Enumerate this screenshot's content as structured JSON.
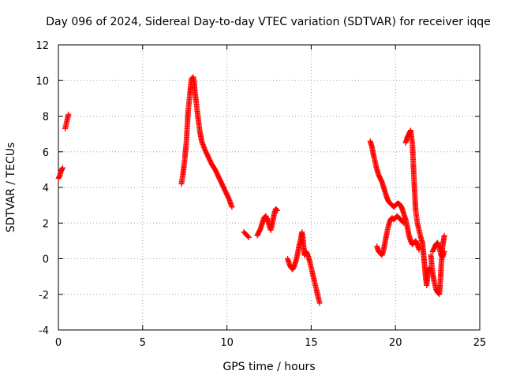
{
  "chart_data": {
    "type": "scatter",
    "title": "Day 096 of 2024, Sidereal Day-to-day VTEC variation (SDTVAR) for receiver iqqe",
    "xlabel": "GPS time / hours",
    "ylabel": "SDTVAR / TECUs",
    "xlim": [
      0,
      25
    ],
    "ylim": [
      -4,
      12
    ],
    "xticks": [
      0,
      5,
      10,
      15,
      20,
      25
    ],
    "yticks": [
      -4,
      -2,
      0,
      2,
      4,
      6,
      8,
      10,
      12
    ],
    "grid": true,
    "marker": "plus",
    "color": "#ff0000",
    "series": [
      {
        "name": "SDTVAR",
        "segments": [
          [
            [
              0.0,
              4.5
            ],
            [
              0.1,
              4.7
            ],
            [
              0.15,
              4.9
            ],
            [
              0.2,
              5.0
            ],
            [
              0.25,
              5.1
            ]
          ],
          [
            [
              0.4,
              7.3
            ],
            [
              0.45,
              7.5
            ],
            [
              0.5,
              7.7
            ],
            [
              0.55,
              7.9
            ],
            [
              0.6,
              8.1
            ]
          ],
          [
            [
              7.3,
              4.2
            ],
            [
              7.4,
              4.8
            ],
            [
              7.5,
              5.6
            ],
            [
              7.6,
              6.6
            ],
            [
              7.65,
              7.5
            ],
            [
              7.7,
              8.3
            ],
            [
              7.8,
              9.2
            ],
            [
              7.85,
              9.7
            ],
            [
              7.9,
              10.1
            ],
            [
              8.0,
              10.2
            ],
            [
              8.05,
              9.9
            ],
            [
              8.1,
              9.4
            ],
            [
              8.2,
              8.6
            ],
            [
              8.3,
              7.8
            ],
            [
              8.4,
              7.1
            ],
            [
              8.5,
              6.6
            ],
            [
              8.7,
              6.1
            ],
            [
              8.9,
              5.7
            ],
            [
              9.1,
              5.3
            ],
            [
              9.3,
              5.0
            ],
            [
              9.5,
              4.6
            ],
            [
              9.7,
              4.2
            ],
            [
              9.9,
              3.8
            ],
            [
              10.1,
              3.4
            ],
            [
              10.3,
              2.9
            ]
          ],
          [
            [
              11.0,
              1.5
            ],
            [
              11.1,
              1.4
            ],
            [
              11.2,
              1.3
            ],
            [
              11.3,
              1.2
            ]
          ],
          [
            [
              11.8,
              1.3
            ],
            [
              11.9,
              1.5
            ],
            [
              12.0,
              1.7
            ],
            [
              12.1,
              2.0
            ],
            [
              12.2,
              2.3
            ],
            [
              12.3,
              2.4
            ],
            [
              12.4,
              2.2
            ],
            [
              12.5,
              1.9
            ],
            [
              12.6,
              1.6
            ],
            [
              12.7,
              2.0
            ],
            [
              12.8,
              2.5
            ],
            [
              12.9,
              2.8
            ],
            [
              13.0,
              2.7
            ]
          ],
          [
            [
              13.6,
              0.0
            ],
            [
              13.7,
              -0.3
            ],
            [
              13.8,
              -0.5
            ],
            [
              13.9,
              -0.6
            ],
            [
              14.0,
              -0.4
            ],
            [
              14.1,
              -0.1
            ],
            [
              14.2,
              0.3
            ],
            [
              14.3,
              0.8
            ],
            [
              14.4,
              1.2
            ],
            [
              14.45,
              1.5
            ],
            [
              14.5,
              1.2
            ],
            [
              14.55,
              0.7
            ],
            [
              14.6,
              0.2
            ],
            [
              14.7,
              0.4
            ],
            [
              14.8,
              0.2
            ],
            [
              14.9,
              -0.1
            ],
            [
              15.0,
              -0.5
            ],
            [
              15.1,
              -0.9
            ],
            [
              15.2,
              -1.3
            ],
            [
              15.3,
              -1.7
            ],
            [
              15.4,
              -2.1
            ],
            [
              15.5,
              -2.5
            ]
          ],
          [
            [
              18.5,
              6.6
            ],
            [
              18.6,
              6.3
            ],
            [
              18.7,
              5.8
            ],
            [
              18.8,
              5.4
            ],
            [
              18.9,
              5.0
            ],
            [
              19.0,
              4.7
            ],
            [
              19.1,
              4.5
            ],
            [
              19.2,
              4.3
            ],
            [
              19.3,
              4.0
            ],
            [
              19.4,
              3.7
            ],
            [
              19.5,
              3.4
            ],
            [
              19.6,
              3.2
            ],
            [
              19.7,
              3.1
            ],
            [
              19.8,
              3.0
            ],
            [
              19.9,
              2.9
            ],
            [
              20.0,
              3.0
            ],
            [
              20.1,
              3.1
            ],
            [
              20.2,
              3.1
            ],
            [
              20.3,
              3.0
            ],
            [
              20.4,
              2.8
            ],
            [
              20.5,
              2.5
            ],
            [
              20.6,
              2.2
            ],
            [
              20.7,
              1.8
            ],
            [
              20.8,
              1.3
            ],
            [
              20.9,
              1.0
            ],
            [
              21.0,
              0.8
            ],
            [
              21.1,
              0.9
            ],
            [
              21.2,
              1.0
            ],
            [
              21.3,
              0.8
            ],
            [
              21.4,
              0.5
            ]
          ],
          [
            [
              18.9,
              0.7
            ],
            [
              19.0,
              0.4
            ],
            [
              19.1,
              0.3
            ],
            [
              19.2,
              0.2
            ],
            [
              19.3,
              0.5
            ],
            [
              19.4,
              1.0
            ],
            [
              19.5,
              1.5
            ],
            [
              19.6,
              1.9
            ],
            [
              19.7,
              2.2
            ],
            [
              19.8,
              2.3
            ],
            [
              19.9,
              2.2
            ],
            [
              20.0,
              2.3
            ],
            [
              20.1,
              2.4
            ],
            [
              20.2,
              2.3
            ],
            [
              20.3,
              2.2
            ],
            [
              20.4,
              2.1
            ],
            [
              20.5,
              2.0
            ]
          ],
          [
            [
              20.6,
              6.5
            ],
            [
              20.7,
              6.8
            ],
            [
              20.8,
              7.0
            ],
            [
              20.9,
              7.2
            ],
            [
              21.0,
              6.5
            ],
            [
              21.05,
              5.5
            ],
            [
              21.1,
              4.5
            ],
            [
              21.15,
              3.5
            ],
            [
              21.2,
              2.7
            ],
            [
              21.3,
              2.0
            ],
            [
              21.4,
              1.6
            ],
            [
              21.5,
              1.2
            ],
            [
              21.6,
              0.9
            ],
            [
              21.65,
              0.4
            ],
            [
              21.7,
              -0.1
            ],
            [
              21.75,
              -0.6
            ],
            [
              21.8,
              -1.1
            ],
            [
              21.85,
              -1.5
            ],
            [
              21.9,
              -1.0
            ],
            [
              22.0,
              -0.5
            ]
          ],
          [
            [
              22.1,
              0.2
            ],
            [
              22.2,
              -0.8
            ],
            [
              22.3,
              -1.3
            ],
            [
              22.4,
              -1.7
            ],
            [
              22.5,
              -1.9
            ],
            [
              22.6,
              -2.0
            ],
            [
              22.65,
              -1.5
            ],
            [
              22.7,
              -0.6
            ],
            [
              22.75,
              0.1
            ],
            [
              22.8,
              0.7
            ],
            [
              22.85,
              1.0
            ],
            [
              22.9,
              1.3
            ]
          ],
          [
            [
              22.2,
              0.4
            ],
            [
              22.3,
              0.6
            ],
            [
              22.4,
              0.8
            ],
            [
              22.5,
              0.9
            ],
            [
              22.6,
              0.6
            ],
            [
              22.7,
              0.2
            ],
            [
              22.8,
              0.1
            ],
            [
              22.9,
              0.4
            ]
          ]
        ]
      }
    ]
  }
}
